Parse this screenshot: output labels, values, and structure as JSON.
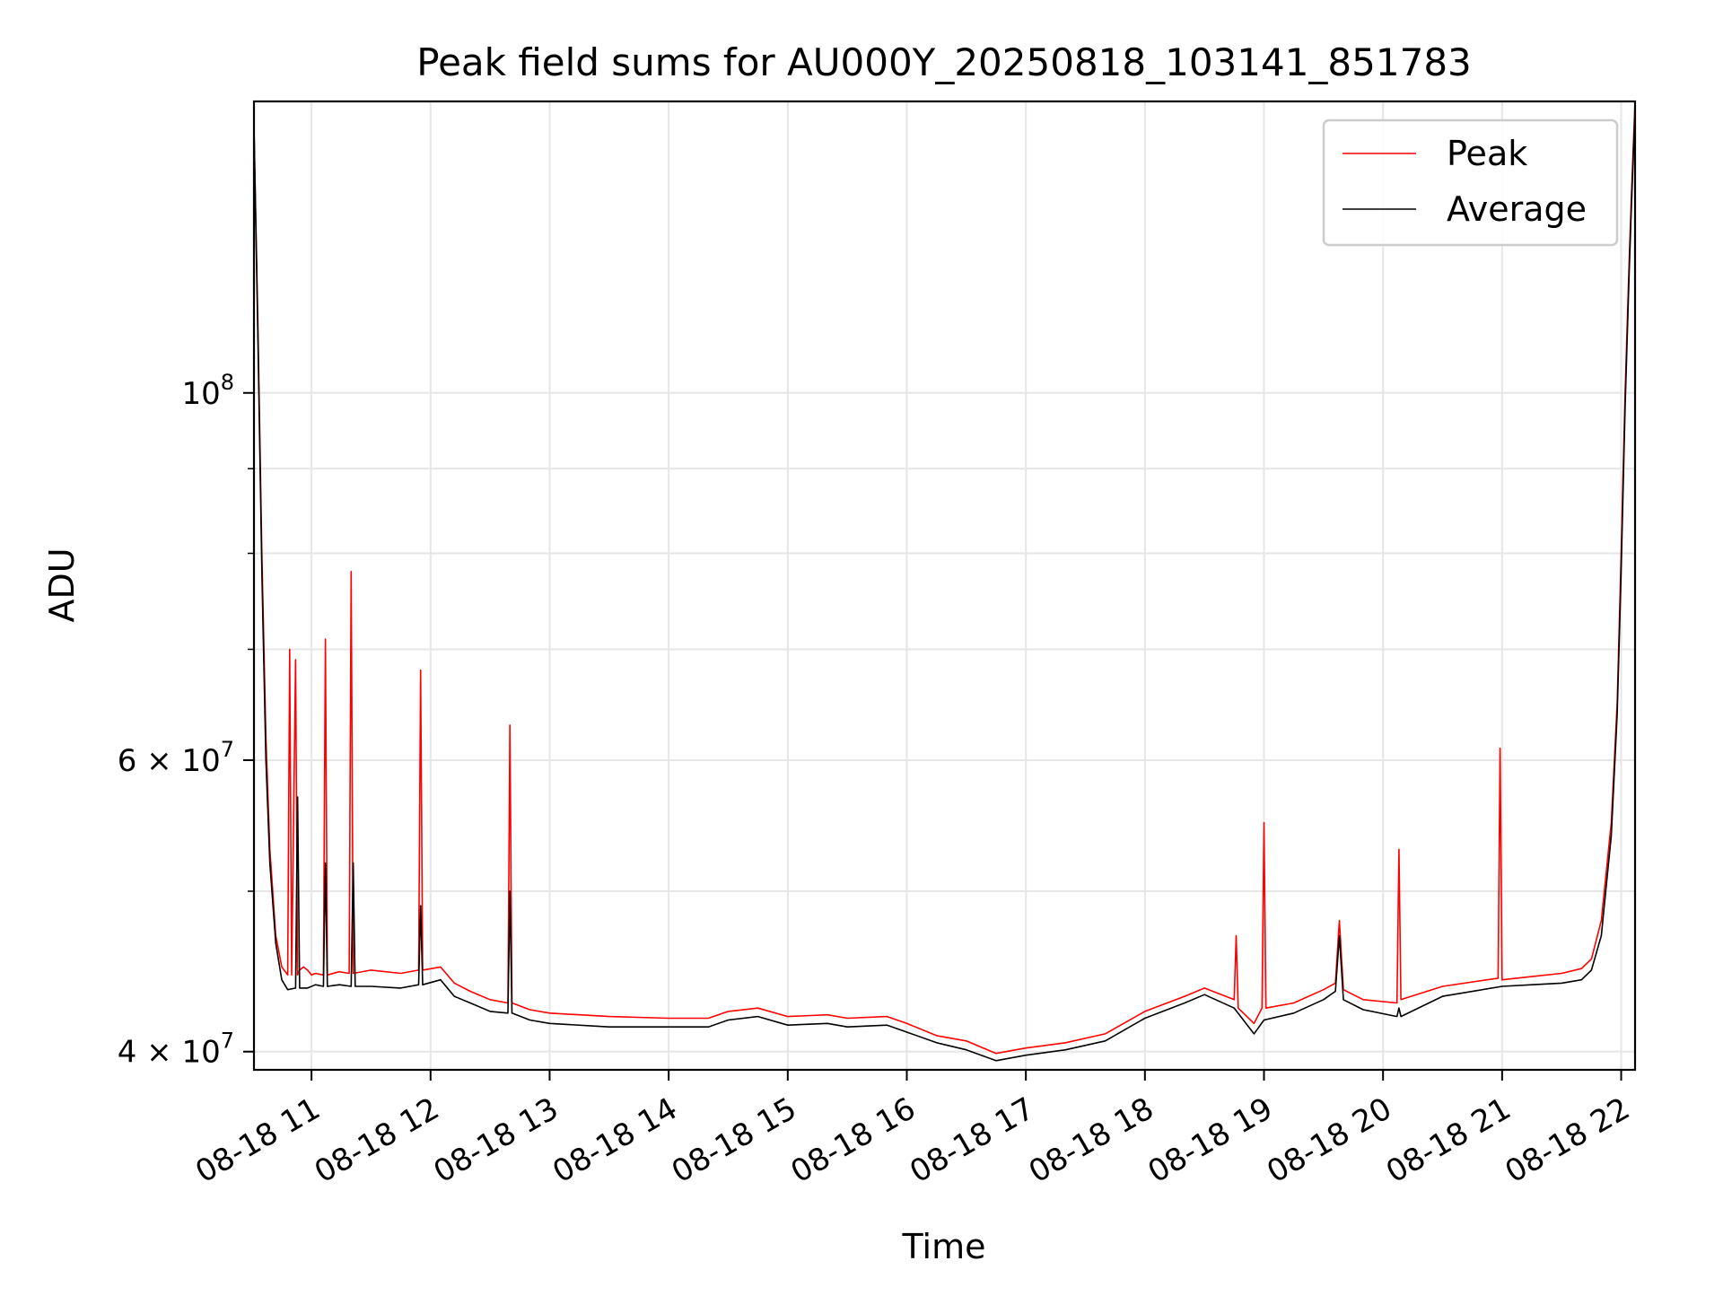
{
  "chart_data": {
    "type": "line",
    "title": "Peak field sums for AU000Y_20250818_103141_851783",
    "xlabel": "Time",
    "ylabel": "ADU",
    "yscale": "log",
    "x_unit": "hour",
    "xlim": [
      "2025-08-18 10:31",
      "2025-08-18 22:07"
    ],
    "ylim": [
      39000000,
      150000000
    ],
    "grid": true,
    "legend_position": "upper right",
    "x_ticks": [
      {
        "value": "2025-08-18 11:00",
        "label": "08-18 11"
      },
      {
        "value": "2025-08-18 12:00",
        "label": "08-18 12"
      },
      {
        "value": "2025-08-18 13:00",
        "label": "08-18 13"
      },
      {
        "value": "2025-08-18 14:00",
        "label": "08-18 14"
      },
      {
        "value": "2025-08-18 15:00",
        "label": "08-18 15"
      },
      {
        "value": "2025-08-18 16:00",
        "label": "08-18 16"
      },
      {
        "value": "2025-08-18 17:00",
        "label": "08-18 17"
      },
      {
        "value": "2025-08-18 18:00",
        "label": "08-18 18"
      },
      {
        "value": "2025-08-18 19:00",
        "label": "08-18 19"
      },
      {
        "value": "2025-08-18 20:00",
        "label": "08-18 20"
      },
      {
        "value": "2025-08-18 21:00",
        "label": "08-18 21"
      },
      {
        "value": "2025-08-18 22:00",
        "label": "08-18 22"
      }
    ],
    "y_ticks": [
      {
        "value": 40000000,
        "label": "4 × 10^7",
        "mantissa": "4 × 10",
        "exp": "7"
      },
      {
        "value": 60000000,
        "label": "6 × 10^7",
        "mantissa": "6 × 10",
        "exp": "7"
      },
      {
        "value": 100000000,
        "label": "10^8",
        "mantissa": "10",
        "exp": "8"
      }
    ],
    "y_minor_ticks": [
      50000000,
      70000000,
      80000000,
      90000000
    ],
    "series": [
      {
        "name": "Peak",
        "color": "#ff0000",
        "x": [
          "2025-08-18 10:31",
          "2025-08-18 10:33",
          "2025-08-18 10:35",
          "2025-08-18 10:37",
          "2025-08-18 10:39",
          "2025-08-18 10:42",
          "2025-08-18 10:45",
          "2025-08-18 10:48",
          "2025-08-18 10:49",
          "2025-08-18 10:50",
          "2025-08-18 10:52",
          "2025-08-18 10:53",
          "2025-08-18 10:54",
          "2025-08-18 10:56",
          "2025-08-18 10:58",
          "2025-08-18 11:00",
          "2025-08-18 11:02",
          "2025-08-18 11:06",
          "2025-08-18 11:07",
          "2025-08-18 11:08",
          "2025-08-18 11:14",
          "2025-08-18 11:19",
          "2025-08-18 11:20",
          "2025-08-18 11:21",
          "2025-08-18 11:30",
          "2025-08-18 11:45",
          "2025-08-18 11:54",
          "2025-08-18 11:55",
          "2025-08-18 11:56",
          "2025-08-18 12:05",
          "2025-08-18 12:12",
          "2025-08-18 12:20",
          "2025-08-18 12:30",
          "2025-08-18 12:39",
          "2025-08-18 12:40",
          "2025-08-18 12:41",
          "2025-08-18 12:50",
          "2025-08-18 13:00",
          "2025-08-18 13:30",
          "2025-08-18 14:00",
          "2025-08-18 14:20",
          "2025-08-18 14:30",
          "2025-08-18 14:45",
          "2025-08-18 15:00",
          "2025-08-18 15:20",
          "2025-08-18 15:30",
          "2025-08-18 15:50",
          "2025-08-18 16:00",
          "2025-08-18 16:15",
          "2025-08-18 16:30",
          "2025-08-18 16:45",
          "2025-08-18 17:00",
          "2025-08-18 17:20",
          "2025-08-18 17:40",
          "2025-08-18 18:00",
          "2025-08-18 18:20",
          "2025-08-18 18:30",
          "2025-08-18 18:45",
          "2025-08-18 18:46",
          "2025-08-18 18:47",
          "2025-08-18 18:55",
          "2025-08-18 18:59",
          "2025-08-18 19:00",
          "2025-08-18 19:01",
          "2025-08-18 19:15",
          "2025-08-18 19:30",
          "2025-08-18 19:36",
          "2025-08-18 19:38",
          "2025-08-18 19:40",
          "2025-08-18 19:50",
          "2025-08-18 20:07",
          "2025-08-18 20:08",
          "2025-08-18 20:09",
          "2025-08-18 20:30",
          "2025-08-18 20:58",
          "2025-08-18 20:59",
          "2025-08-18 21:00",
          "2025-08-18 21:15",
          "2025-08-18 21:30",
          "2025-08-18 21:40",
          "2025-08-18 21:45",
          "2025-08-18 21:50",
          "2025-08-18 21:55",
          "2025-08-18 21:58",
          "2025-08-18 22:00",
          "2025-08-18 22:02",
          "2025-08-18 22:04",
          "2025-08-18 22:05",
          "2025-08-18 22:06",
          "2025-08-18 22:07"
        ],
        "y": [
          145000000,
          110000000,
          80000000,
          62000000,
          53000000,
          47000000,
          45000000,
          44500000,
          70000000,
          44500000,
          69000000,
          44500000,
          44800000,
          45000000,
          44800000,
          44500000,
          44600000,
          44500000,
          71000000,
          44500000,
          44700000,
          44600000,
          78000000,
          44600000,
          44800000,
          44600000,
          44800000,
          68000000,
          44800000,
          45000000,
          44000000,
          43500000,
          43000000,
          42800000,
          63000000,
          42800000,
          42400000,
          42200000,
          42000000,
          41900000,
          41900000,
          42300000,
          42500000,
          42000000,
          42100000,
          41900000,
          42000000,
          41600000,
          40900000,
          40600000,
          39900000,
          40200000,
          40500000,
          41000000,
          42300000,
          43200000,
          43700000,
          43000000,
          47000000,
          42500000,
          41600000,
          42500000,
          55000000,
          42500000,
          42800000,
          43600000,
          44000000,
          48000000,
          43600000,
          43000000,
          42800000,
          53000000,
          43000000,
          43800000,
          44300000,
          61000000,
          44200000,
          44400000,
          44600000,
          44900000,
          45500000,
          48000000,
          55000000,
          65000000,
          80000000,
          100000000,
          120000000,
          130000000,
          140000000,
          150000000
        ]
      },
      {
        "name": "Average",
        "color": "#000000",
        "x": [
          "2025-08-18 10:31",
          "2025-08-18 10:33",
          "2025-08-18 10:35",
          "2025-08-18 10:37",
          "2025-08-18 10:39",
          "2025-08-18 10:42",
          "2025-08-18 10:45",
          "2025-08-18 10:48",
          "2025-08-18 10:52",
          "2025-08-18 10:53",
          "2025-08-18 10:54",
          "2025-08-18 10:58",
          "2025-08-18 11:02",
          "2025-08-18 11:06",
          "2025-08-18 11:07",
          "2025-08-18 11:08",
          "2025-08-18 11:14",
          "2025-08-18 11:20",
          "2025-08-18 11:21",
          "2025-08-18 11:22",
          "2025-08-18 11:30",
          "2025-08-18 11:45",
          "2025-08-18 11:54",
          "2025-08-18 11:55",
          "2025-08-18 11:56",
          "2025-08-18 12:05",
          "2025-08-18 12:12",
          "2025-08-18 12:20",
          "2025-08-18 12:30",
          "2025-08-18 12:39",
          "2025-08-18 12:40",
          "2025-08-18 12:41",
          "2025-08-18 12:50",
          "2025-08-18 13:00",
          "2025-08-18 13:30",
          "2025-08-18 14:00",
          "2025-08-18 14:20",
          "2025-08-18 14:30",
          "2025-08-18 14:45",
          "2025-08-18 15:00",
          "2025-08-18 15:20",
          "2025-08-18 15:30",
          "2025-08-18 15:50",
          "2025-08-18 16:00",
          "2025-08-18 16:15",
          "2025-08-18 16:30",
          "2025-08-18 16:45",
          "2025-08-18 17:00",
          "2025-08-18 17:20",
          "2025-08-18 17:40",
          "2025-08-18 18:00",
          "2025-08-18 18:20",
          "2025-08-18 18:30",
          "2025-08-18 18:45",
          "2025-08-18 18:55",
          "2025-08-18 19:00",
          "2025-08-18 19:15",
          "2025-08-18 19:30",
          "2025-08-18 19:36",
          "2025-08-18 19:38",
          "2025-08-18 19:40",
          "2025-08-18 19:50",
          "2025-08-18 20:07",
          "2025-08-18 20:08",
          "2025-08-18 20:09",
          "2025-08-18 20:30",
          "2025-08-18 21:00",
          "2025-08-18 21:15",
          "2025-08-18 21:30",
          "2025-08-18 21:40",
          "2025-08-18 21:45",
          "2025-08-18 21:50",
          "2025-08-18 21:55",
          "2025-08-18 21:58",
          "2025-08-18 22:00",
          "2025-08-18 22:02",
          "2025-08-18 22:04",
          "2025-08-18 22:05",
          "2025-08-18 22:06",
          "2025-08-18 22:07"
        ],
        "y": [
          145000000,
          108000000,
          78000000,
          60000000,
          52000000,
          46500000,
          44200000,
          43600000,
          43700000,
          57000000,
          43700000,
          43700000,
          43900000,
          43800000,
          52000000,
          43800000,
          43900000,
          43800000,
          52000000,
          43800000,
          43800000,
          43700000,
          43900000,
          49000000,
          43900000,
          44200000,
          43200000,
          42800000,
          42300000,
          42200000,
          50000000,
          42200000,
          41800000,
          41600000,
          41400000,
          41400000,
          41400000,
          41800000,
          42000000,
          41500000,
          41600000,
          41400000,
          41500000,
          41100000,
          40500000,
          40100000,
          39500000,
          39800000,
          40100000,
          40600000,
          41900000,
          42800000,
          43300000,
          42500000,
          41000000,
          41800000,
          42200000,
          43000000,
          43500000,
          47000000,
          43000000,
          42400000,
          42000000,
          42500000,
          42000000,
          43200000,
          43800000,
          43900000,
          44000000,
          44200000,
          44800000,
          47000000,
          54000000,
          64000000,
          78000000,
          98000000,
          118000000,
          128000000,
          138000000,
          148000000
        ]
      }
    ]
  }
}
